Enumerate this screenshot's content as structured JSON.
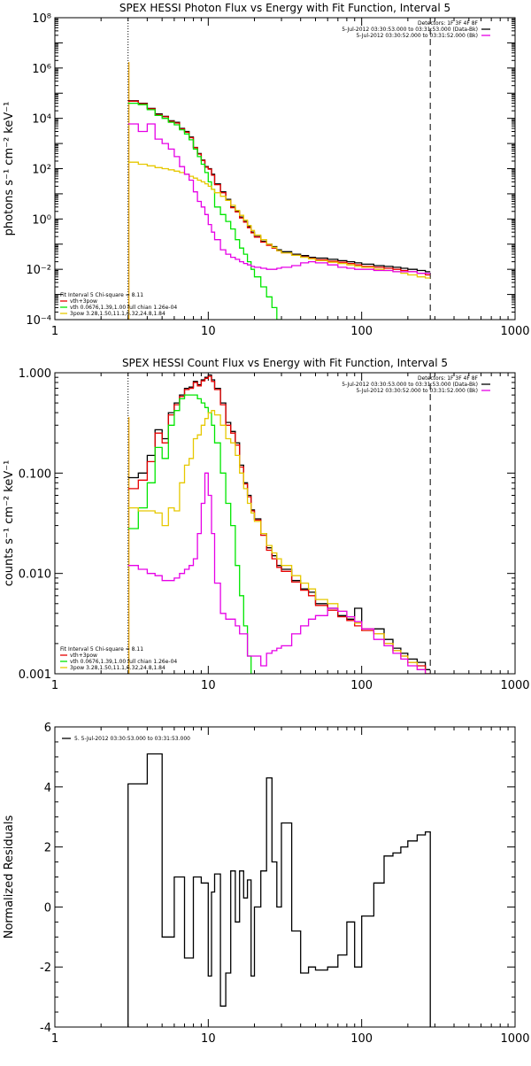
{
  "chart_data": [
    {
      "type": "line",
      "step": true,
      "title": "SPEX HESSI Photon Flux vs Energy with Fit Function, Interval 5",
      "xlabel": "",
      "ylabel": "photons s⁻¹ cm⁻² keV⁻¹",
      "xscale": "log",
      "yscale": "log",
      "xlim": [
        1,
        1000
      ],
      "ylim": [
        0.0001,
        100000000
      ],
      "xticks": [
        1,
        10,
        100,
        1000
      ],
      "xticklabels": [
        "1",
        "10",
        "100",
        "1000"
      ],
      "yticks": [
        0.0001,
        0.01,
        1,
        100,
        10000,
        1000000,
        100000000
      ],
      "yticklabels": [
        "10⁻⁴",
        "10⁻²",
        "10⁰",
        "10²",
        "10⁴",
        "10⁶",
        "10⁸"
      ],
      "vlines": [
        {
          "x": 3.0,
          "style": "dotted"
        },
        {
          "x": 280,
          "style": "dashed"
        }
      ],
      "legend_tr": [
        "Detectors: 1F 3F 4F 8F",
        "5-Jul-2012 03:30:53.000 to 03:31:53.000 (Data-Bk)",
        "5-Jul-2012 03:30:52.000 to 03:31:52.000 (Bk)"
      ],
      "legend_tr_colors": [
        "",
        "#000000",
        "#e600e6"
      ],
      "legend_bl": [
        "Fit Interval 5   Chi-square = 8.11",
        "vth+3pow",
        "vth 0.0676,1.39,1.00  full chian 1.26e-04",
        "3pow 3.28,1.50,11.1,6.32,24.8,1.84"
      ],
      "legend_bl_colors": [
        "",
        "#e60000",
        "#00e600",
        "#e6c800"
      ],
      "edges": [
        3.0,
        3.5,
        4.0,
        4.5,
        5.0,
        5.5,
        6.0,
        6.5,
        7.0,
        7.5,
        8.0,
        8.5,
        9.0,
        9.5,
        10.0,
        10.5,
        11.0,
        12.0,
        13.0,
        14.0,
        15.0,
        16.0,
        17.0,
        18.0,
        19.0,
        20.0,
        22.0,
        24.0,
        26.0,
        28.0,
        30.0,
        35.0,
        40.0,
        45.0,
        50.0,
        60.0,
        70.0,
        80.0,
        90.0,
        100.0,
        120.0,
        140.0,
        160.0,
        180.0,
        200.0,
        230.0,
        260.0,
        280.0
      ],
      "series": [
        {
          "name": "5-Jul-2012 03:30:53.000 to 03:31:53.000 (Data-Bk)",
          "color": "#000000",
          "values": [
            50000,
            40000,
            25000,
            15000,
            12000,
            8000,
            7000,
            4000,
            3000,
            1800,
            700,
            400,
            220,
            120,
            100,
            60,
            25,
            12,
            6,
            3,
            2,
            1.2,
            0.8,
            0.5,
            0.3,
            0.2,
            0.13,
            0.1,
            0.08,
            0.06,
            0.05,
            0.04,
            0.035,
            0.03,
            0.028,
            0.025,
            0.022,
            0.02,
            0.018,
            0.016,
            0.014,
            0.013,
            0.012,
            0.011,
            0.01,
            0.009,
            0.008
          ]
        },
        {
          "name": "vth+3pow",
          "color": "#e60000",
          "values": [
            48000,
            38000,
            24000,
            14000,
            11500,
            7500,
            6500,
            3800,
            2800,
            1700,
            680,
            380,
            210,
            115,
            95,
            55,
            23,
            11,
            5.5,
            2.8,
            1.9,
            1.1,
            0.75,
            0.45,
            0.28,
            0.19,
            0.12,
            0.09,
            0.07,
            0.055,
            0.045,
            0.036,
            0.031,
            0.027,
            0.024,
            0.021,
            0.019,
            0.017,
            0.015,
            0.013,
            0.012,
            0.011,
            0.01,
            0.009,
            0.008,
            0.007,
            0.006
          ]
        },
        {
          "name": "vth 0.0676,1.39,1.00",
          "color": "#00e600",
          "values": [
            40000,
            35000,
            22000,
            13000,
            10000,
            7000,
            5500,
            3500,
            2400,
            1400,
            600,
            300,
            150,
            70,
            30,
            15,
            3,
            1.5,
            0.8,
            0.4,
            0.15,
            0.07,
            0.04,
            0.02,
            0.01,
            0.005,
            0.002,
            0.0008,
            0.0003,
            0.0001
          ]
        },
        {
          "name": "3pow 3.28,1.50,11.1,6.32,24.8,1.84",
          "color": "#e6c800",
          "values": [
            180,
            150,
            130,
            110,
            100,
            90,
            80,
            70,
            60,
            50,
            42,
            35,
            30,
            25,
            20,
            15,
            11,
            8,
            5.5,
            3.5,
            2.2,
            1.4,
            0.9,
            0.55,
            0.35,
            0.23,
            0.15,
            0.1,
            0.075,
            0.055,
            0.045,
            0.036,
            0.03,
            0.026,
            0.022,
            0.019,
            0.017,
            0.015,
            0.013,
            0.012,
            0.01,
            0.009,
            0.008,
            0.007,
            0.006,
            0.005,
            0.0045
          ]
        },
        {
          "name": "5-Jul-2012 03:30:52.000 to 03:31:52.000 (Bk)",
          "color": "#e600e6",
          "values": [
            6000,
            3000,
            6000,
            1500,
            1000,
            600,
            300,
            120,
            60,
            35,
            12,
            5,
            3,
            1.5,
            0.6,
            0.3,
            0.15,
            0.06,
            0.04,
            0.03,
            0.025,
            0.02,
            0.017,
            0.015,
            0.013,
            0.012,
            0.011,
            0.01,
            0.01,
            0.011,
            0.012,
            0.014,
            0.018,
            0.02,
            0.018,
            0.015,
            0.012,
            0.011,
            0.01,
            0.01,
            0.009,
            0.009,
            0.008,
            0.008,
            0.008,
            0.007,
            0.007
          ]
        }
      ]
    },
    {
      "type": "line",
      "step": true,
      "title": "SPEX HESSI Count Flux vs Energy with Fit Function, Interval 5",
      "xlabel": "",
      "ylabel": "counts s⁻¹ cm⁻² keV⁻¹",
      "xscale": "log",
      "yscale": "log",
      "xlim": [
        1,
        1000
      ],
      "ylim": [
        0.001,
        1.0
      ],
      "xticks": [
        1,
        10,
        100,
        1000
      ],
      "xticklabels": [
        "1",
        "10",
        "100",
        "1000"
      ],
      "yticks": [
        0.001,
        0.01,
        0.1,
        1.0
      ],
      "yticklabels": [
        "0.001",
        "0.010",
        "0.100",
        "1.000"
      ],
      "vlines": [
        {
          "x": 3.0,
          "style": "dotted"
        },
        {
          "x": 280,
          "style": "dashed"
        }
      ],
      "legend_tr": [
        "Detectors: 1F 3F 4F 8F",
        "5-Jul-2012 03:30:53.000 to 03:31:53.000 (Data-Bk)",
        "5-Jul-2012 03:30:52.000 to 03:31:52.000 (Bk)"
      ],
      "legend_tr_colors": [
        "",
        "#000000",
        "#e600e6"
      ],
      "legend_bl": [
        "Fit Interval 5   Chi-square = 8.11",
        "vth+3pow",
        "vth 0.0676,1.39,1.00  full chian 1.26e-04",
        "3pow 3.28,1.50,11.1,6.32,24.8,1.84"
      ],
      "legend_bl_colors": [
        "",
        "#e60000",
        "#00e600",
        "#e6c800"
      ],
      "edges": [
        3.0,
        3.5,
        4.0,
        4.5,
        5.0,
        5.5,
        6.0,
        6.5,
        7.0,
        7.5,
        8.0,
        8.5,
        9.0,
        9.5,
        10.0,
        10.5,
        11.0,
        12.0,
        13.0,
        14.0,
        15.0,
        16.0,
        17.0,
        18.0,
        19.0,
        20.0,
        22.0,
        24.0,
        26.0,
        28.0,
        30.0,
        35.0,
        40.0,
        45.0,
        50.0,
        60.0,
        70.0,
        80.0,
        90.0,
        100.0,
        120.0,
        140.0,
        160.0,
        180.0,
        200.0,
        230.0,
        260.0,
        280.0
      ],
      "series": [
        {
          "name": "5-Jul-2012 03:30:53.000 to 03:31:53.000 (Data-Bk)",
          "color": "#000000",
          "values": [
            0.09,
            0.1,
            0.15,
            0.27,
            0.22,
            0.4,
            0.5,
            0.6,
            0.7,
            0.72,
            0.82,
            0.76,
            0.85,
            0.9,
            0.95,
            0.85,
            0.7,
            0.5,
            0.32,
            0.26,
            0.2,
            0.12,
            0.08,
            0.06,
            0.043,
            0.035,
            0.025,
            0.018,
            0.015,
            0.012,
            0.011,
            0.0085,
            0.007,
            0.0065,
            0.005,
            0.0045,
            0.0038,
            0.0035,
            0.0045,
            0.0028,
            0.0028,
            0.0022,
            0.0018,
            0.0016,
            0.0014,
            0.0013,
            0.0011
          ]
        },
        {
          "name": "vth+3pow",
          "color": "#e60000",
          "values": [
            0.07,
            0.085,
            0.13,
            0.25,
            0.2,
            0.38,
            0.48,
            0.58,
            0.68,
            0.7,
            0.8,
            0.74,
            0.83,
            0.88,
            0.92,
            0.82,
            0.68,
            0.48,
            0.3,
            0.25,
            0.19,
            0.115,
            0.078,
            0.058,
            0.042,
            0.034,
            0.024,
            0.017,
            0.014,
            0.0115,
            0.0105,
            0.0082,
            0.0068,
            0.006,
            0.0048,
            0.0043,
            0.0037,
            0.0034,
            0.003,
            0.0027,
            0.0025,
            0.002,
            0.0017,
            0.0015,
            0.0013,
            0.0012,
            0.001
          ]
        },
        {
          "name": "vth 0.0676,1.39,1.00",
          "color": "#00e600",
          "values": [
            0.028,
            0.045,
            0.08,
            0.18,
            0.14,
            0.3,
            0.42,
            0.55,
            0.6,
            0.6,
            0.6,
            0.55,
            0.5,
            0.45,
            0.4,
            0.3,
            0.2,
            0.1,
            0.05,
            0.03,
            0.012,
            0.006,
            0.003,
            0.0015,
            0.0008
          ]
        },
        {
          "name": "3pow 3.28,1.50,11.1,6.32,24.8,1.84",
          "color": "#e6c800",
          "values": [
            0.045,
            0.042,
            0.042,
            0.04,
            0.03,
            0.045,
            0.042,
            0.08,
            0.12,
            0.14,
            0.22,
            0.24,
            0.3,
            0.35,
            0.4,
            0.42,
            0.38,
            0.3,
            0.22,
            0.2,
            0.15,
            0.1,
            0.07,
            0.05,
            0.04,
            0.033,
            0.025,
            0.019,
            0.016,
            0.014,
            0.012,
            0.0095,
            0.008,
            0.007,
            0.0055,
            0.005,
            0.0042,
            0.0037,
            0.0032,
            0.0028,
            0.0025,
            0.002,
            0.0017,
            0.0015,
            0.0013,
            0.0011,
            0.001
          ]
        },
        {
          "name": "5-Jul-2012 03:30:52.000 to 03:31:52.000 (Bk)",
          "color": "#e600e6",
          "values": [
            0.012,
            0.011,
            0.01,
            0.0095,
            0.0085,
            0.0085,
            0.009,
            0.01,
            0.011,
            0.012,
            0.014,
            0.025,
            0.05,
            0.1,
            0.06,
            0.025,
            0.008,
            0.004,
            0.0035,
            0.0035,
            0.003,
            0.0025,
            0.0025,
            0.0015,
            0.0015,
            0.0015,
            0.0012,
            0.0016,
            0.0017,
            0.0018,
            0.0019,
            0.0025,
            0.003,
            0.0035,
            0.0038,
            0.0045,
            0.0042,
            0.0037,
            0.0033,
            0.0028,
            0.0022,
            0.0019,
            0.0016,
            0.0014,
            0.0012,
            0.0011,
            0.001
          ]
        }
      ]
    },
    {
      "type": "line",
      "step": true,
      "title": "",
      "xlabel": "",
      "ylabel": "Normalized Residuals",
      "xscale": "log",
      "yscale": "linear",
      "xlim": [
        1,
        1000
      ],
      "ylim": [
        -4,
        6
      ],
      "xticks": [
        1,
        10,
        100,
        1000
      ],
      "xticklabels": [
        "1",
        "10",
        "100",
        "1000"
      ],
      "yticks": [
        -4,
        -2,
        0,
        2,
        4,
        6
      ],
      "yticklabels": [
        "-4",
        "-2",
        "0",
        "2",
        "4",
        "6"
      ],
      "vlines": [],
      "legend_tl": [
        "5.  5-Jul-2012 03:30:53.000 to 03:31:53.000"
      ],
      "legend_tl_colors": [
        "#000000"
      ],
      "edges": [
        3.0,
        3.5,
        4.0,
        4.5,
        5.0,
        5.5,
        6.0,
        6.5,
        7.0,
        7.5,
        8.0,
        8.5,
        9.0,
        9.5,
        10.0,
        10.5,
        11.0,
        12.0,
        13.0,
        14.0,
        15.0,
        16.0,
        17.0,
        18.0,
        19.0,
        20.0,
        22.0,
        24.0,
        26.0,
        28.0,
        30.0,
        35.0,
        40.0,
        45.0,
        50.0,
        60.0,
        70.0,
        80.0,
        90.0,
        100.0,
        120.0,
        140.0,
        160.0,
        180.0,
        200.0,
        230.0,
        260.0,
        280.0
      ],
      "drop_to_floor": true,
      "series": [
        {
          "name": "5.  5-Jul-2012 03:30:53.000 to 03:31:53.000",
          "color": "#000000",
          "values": [
            4.1,
            4.1,
            5.1,
            5.1,
            -1.0,
            -1.0,
            1.0,
            1.0,
            -1.7,
            -1.7,
            1.0,
            1.0,
            0.8,
            0.8,
            -2.3,
            0.5,
            1.1,
            -3.3,
            -2.2,
            1.2,
            -0.5,
            1.2,
            0.3,
            0.9,
            -2.3,
            0.0,
            1.2,
            4.3,
            1.5,
            0.0,
            2.8,
            -0.8,
            -2.2,
            -2.0,
            -2.1,
            -2.0,
            -1.6,
            -0.5,
            -2.0,
            -0.3,
            0.8,
            1.7,
            1.8,
            2.0,
            2.2,
            2.4,
            2.5
          ]
        }
      ]
    }
  ]
}
